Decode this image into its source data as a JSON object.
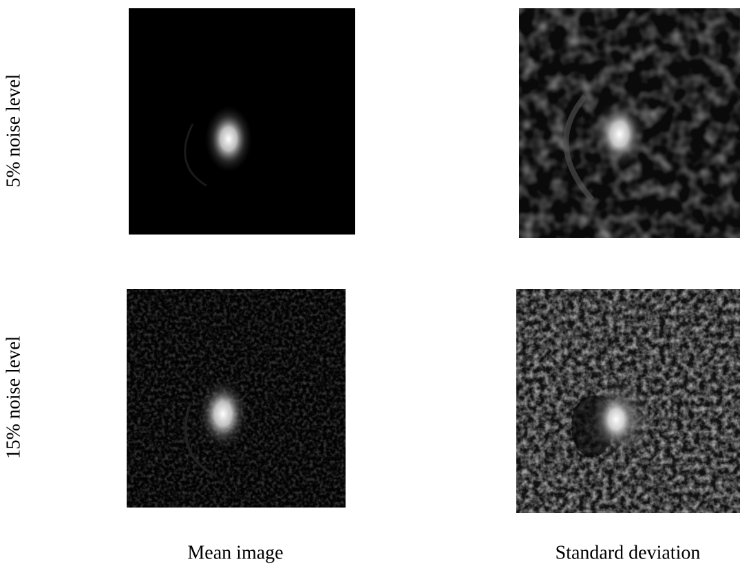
{
  "row_labels": [
    "5% noise level",
    "15% noise level"
  ],
  "column_labels": [
    "Mean image",
    "Standard deviation"
  ]
}
